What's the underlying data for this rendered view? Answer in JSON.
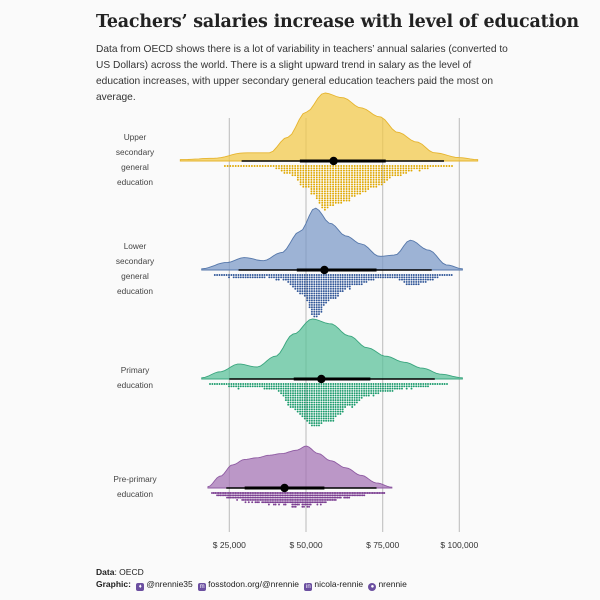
{
  "title": "Teachers’ salaries increase with level of education",
  "subtitle": "Data from OECD shows there is a lot of variability in teachers’ annual salaries (converted to US Dollars) across the world. There is a slight upward trend in salary as the level of education increases, with upper secondary general education teachers paid the most on average.",
  "caption": {
    "data_label": "Data",
    "data_value": "OECD",
    "graphic_label": "Graphic:",
    "handles": [
      {
        "icon": "bird-icon",
        "text": "@nrennie35",
        "color": "#6b4fa0"
      },
      {
        "icon": "mastodon-icon",
        "text": "fosstodon.org/@nrennie",
        "color": "#6b4fa0"
      },
      {
        "icon": "linkedin-icon",
        "text": "nicola-rennie",
        "color": "#6b4fa0"
      },
      {
        "icon": "github-icon",
        "text": "nrennie",
        "color": "#6b4fa0"
      }
    ]
  },
  "chart_data": {
    "type": "raincloud",
    "x_ticks": [
      25000,
      50000,
      75000,
      100000
    ],
    "x_tick_labels": [
      "$ 25,000",
      "$ 50,000",
      "$ 75,000",
      "$ 100,000"
    ],
    "grid": "vertical",
    "categories": [
      {
        "label_lines": [
          "Upper",
          "secondary",
          "general",
          "education"
        ],
        "color": "#f2c94c",
        "stroke": "#e6b42e",
        "dot_color": "#e0a800",
        "xmin": 9000,
        "xmax": 106000,
        "median": 59000,
        "interval_thin": [
          29000,
          95000
        ],
        "interval_thick": [
          48000,
          76000
        ],
        "density": [
          [
            9000,
            0.02
          ],
          [
            20000,
            0.04
          ],
          [
            30000,
            0.12
          ],
          [
            38000,
            0.12
          ],
          [
            44000,
            0.35
          ],
          [
            50000,
            0.72
          ],
          [
            56000,
            1.0
          ],
          [
            62000,
            0.93
          ],
          [
            68000,
            0.78
          ],
          [
            74000,
            0.65
          ],
          [
            80000,
            0.42
          ],
          [
            86000,
            0.28
          ],
          [
            92000,
            0.12
          ],
          [
            100000,
            0.05
          ],
          [
            106000,
            0.02
          ]
        ]
      },
      {
        "label_lines": [
          "Lower",
          "secondary",
          "general",
          "education"
        ],
        "color": "#7d9bc8",
        "stroke": "#5577aa",
        "dot_color": "#2f5597",
        "xmin": 16000,
        "xmax": 101000,
        "median": 56000,
        "interval_thin": [
          28000,
          91000
        ],
        "interval_thick": [
          47000,
          73000
        ],
        "density": [
          [
            16000,
            0.02
          ],
          [
            24000,
            0.12
          ],
          [
            30000,
            0.2
          ],
          [
            36000,
            0.15
          ],
          [
            42000,
            0.28
          ],
          [
            48000,
            0.62
          ],
          [
            53000,
            1.0
          ],
          [
            58000,
            0.75
          ],
          [
            63000,
            0.55
          ],
          [
            68000,
            0.42
          ],
          [
            74000,
            0.22
          ],
          [
            79000,
            0.24
          ],
          [
            84000,
            0.48
          ],
          [
            90000,
            0.32
          ],
          [
            96000,
            0.08
          ],
          [
            101000,
            0.02
          ]
        ]
      },
      {
        "label_lines": [
          "Primary",
          "education"
        ],
        "color": "#5cc29b",
        "stroke": "#3aa57e",
        "dot_color": "#1a9b6c",
        "xmin": 16000,
        "xmax": 101000,
        "median": 55000,
        "interval_thin": [
          25000,
          92000
        ],
        "interval_thick": [
          46000,
          71000
        ],
        "density": [
          [
            16000,
            0.02
          ],
          [
            22000,
            0.12
          ],
          [
            28000,
            0.25
          ],
          [
            34000,
            0.2
          ],
          [
            40000,
            0.38
          ],
          [
            46000,
            0.75
          ],
          [
            52000,
            1.0
          ],
          [
            58000,
            0.92
          ],
          [
            64000,
            0.72
          ],
          [
            70000,
            0.52
          ],
          [
            76000,
            0.38
          ],
          [
            82000,
            0.28
          ],
          [
            88000,
            0.18
          ],
          [
            94000,
            0.08
          ],
          [
            101000,
            0.02
          ]
        ]
      },
      {
        "label_lines": [
          "Pre-primary",
          "education"
        ],
        "color": "#a675b6",
        "stroke": "#8e5aa2",
        "dot_color": "#7b3e91",
        "xmin": 18000,
        "xmax": 78000,
        "median": 43000,
        "interval_thin": [
          24000,
          73000
        ],
        "interval_thick": [
          30000,
          56000
        ],
        "density": [
          [
            18000,
            0.03
          ],
          [
            22000,
            0.28
          ],
          [
            26000,
            0.55
          ],
          [
            30000,
            0.68
          ],
          [
            34000,
            0.72
          ],
          [
            38000,
            0.78
          ],
          [
            42000,
            0.82
          ],
          [
            47000,
            0.9
          ],
          [
            50000,
            1.0
          ],
          [
            54000,
            0.82
          ],
          [
            58000,
            0.65
          ],
          [
            63000,
            0.48
          ],
          [
            68000,
            0.3
          ],
          [
            73000,
            0.12
          ],
          [
            78000,
            0.02
          ]
        ]
      }
    ]
  }
}
